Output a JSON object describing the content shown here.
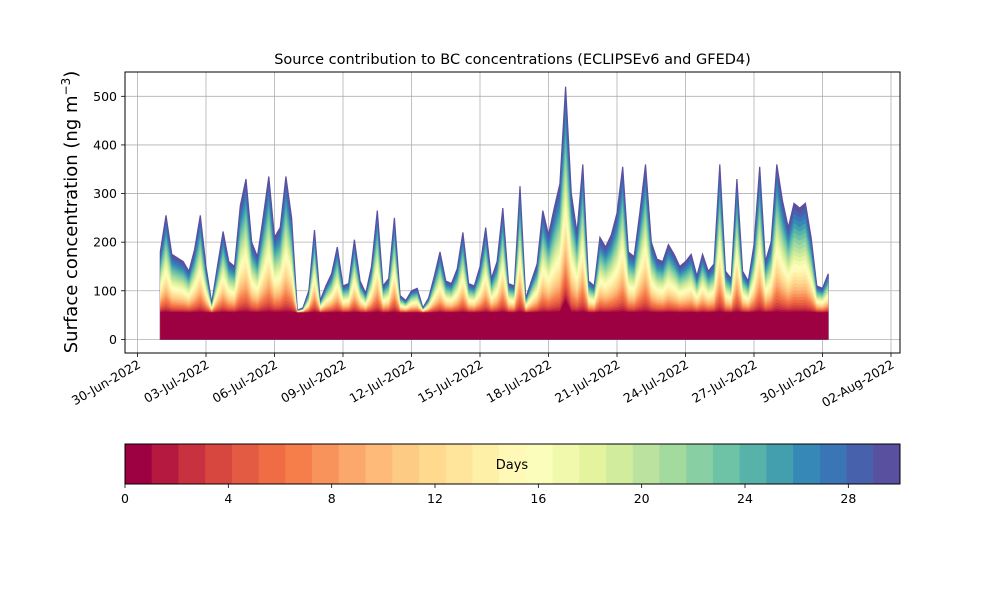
{
  "chart_data": {
    "type": "area",
    "title": "Source contribution to BC concentrations (ECLIPSEv6 and GFED4)",
    "xlabel": "",
    "ylabel": "Surface concentration (ng m",
    "ylabel_sup": "−3",
    "ylabel_close": ")",
    "ylim": [
      -28,
      550
    ],
    "yticks": [
      0,
      100,
      200,
      300,
      400,
      500
    ],
    "xticks": [
      "30-Jun-2022",
      "03-Jul-2022",
      "06-Jul-2022",
      "09-Jul-2022",
      "12-Jul-2022",
      "15-Jul-2022",
      "18-Jul-2022",
      "21-Jul-2022",
      "24-Jul-2022",
      "27-Jul-2022",
      "30-Jul-2022",
      "02-Aug-2022"
    ],
    "grid": true,
    "x_unit": "date",
    "series": [
      {
        "x": "2022-07-01",
        "y": 180
      },
      {
        "x": "2022-07-01T06",
        "y": 255
      },
      {
        "x": "2022-07-01T12",
        "y": 175
      },
      {
        "x": "2022-07-02",
        "y": 160
      },
      {
        "x": "2022-07-02T06",
        "y": 140
      },
      {
        "x": "2022-07-02T12",
        "y": 185
      },
      {
        "x": "2022-07-02T18",
        "y": 255
      },
      {
        "x": "2022-07-03",
        "y": 150
      },
      {
        "x": "2022-07-03T06",
        "y": 75
      },
      {
        "x": "2022-07-03T12",
        "y": 150
      },
      {
        "x": "2022-07-03T18",
        "y": 222
      },
      {
        "x": "2022-07-04",
        "y": 160
      },
      {
        "x": "2022-07-04T06",
        "y": 150
      },
      {
        "x": "2022-07-04T12",
        "y": 275
      },
      {
        "x": "2022-07-04T18",
        "y": 330
      },
      {
        "x": "2022-07-05",
        "y": 200
      },
      {
        "x": "2022-07-05T06",
        "y": 170
      },
      {
        "x": "2022-07-05T12",
        "y": 250
      },
      {
        "x": "2022-07-05T18",
        "y": 335
      },
      {
        "x": "2022-07-06",
        "y": 210
      },
      {
        "x": "2022-07-06T06",
        "y": 230
      },
      {
        "x": "2022-07-06T12",
        "y": 335
      },
      {
        "x": "2022-07-06T18",
        "y": 250
      },
      {
        "x": "2022-07-07",
        "y": 60
      },
      {
        "x": "2022-07-07T06",
        "y": 65
      },
      {
        "x": "2022-07-07T12",
        "y": 100
      },
      {
        "x": "2022-07-07T18",
        "y": 225
      },
      {
        "x": "2022-07-08",
        "y": 80
      },
      {
        "x": "2022-07-08T06",
        "y": 110
      },
      {
        "x": "2022-07-08T12",
        "y": 135
      },
      {
        "x": "2022-07-08T18",
        "y": 190
      },
      {
        "x": "2022-07-09",
        "y": 110
      },
      {
        "x": "2022-07-09T06",
        "y": 115
      },
      {
        "x": "2022-07-09T12",
        "y": 205
      },
      {
        "x": "2022-07-09T18",
        "y": 120
      },
      {
        "x": "2022-07-10",
        "y": 95
      },
      {
        "x": "2022-07-10T06",
        "y": 150
      },
      {
        "x": "2022-07-10T12",
        "y": 265
      },
      {
        "x": "2022-07-10T18",
        "y": 110
      },
      {
        "x": "2022-07-11",
        "y": 125
      },
      {
        "x": "2022-07-11T06",
        "y": 250
      },
      {
        "x": "2022-07-11T12",
        "y": 90
      },
      {
        "x": "2022-07-11T18",
        "y": 80
      },
      {
        "x": "2022-07-12",
        "y": 100
      },
      {
        "x": "2022-07-12T06",
        "y": 105
      },
      {
        "x": "2022-07-12T12",
        "y": 65
      },
      {
        "x": "2022-07-12T18",
        "y": 85
      },
      {
        "x": "2022-07-13",
        "y": 130
      },
      {
        "x": "2022-07-13T06",
        "y": 180
      },
      {
        "x": "2022-07-13T12",
        "y": 120
      },
      {
        "x": "2022-07-13T18",
        "y": 115
      },
      {
        "x": "2022-07-14",
        "y": 145
      },
      {
        "x": "2022-07-14T06",
        "y": 220
      },
      {
        "x": "2022-07-14T12",
        "y": 115
      },
      {
        "x": "2022-07-14T18",
        "y": 110
      },
      {
        "x": "2022-07-15",
        "y": 150
      },
      {
        "x": "2022-07-15T06",
        "y": 230
      },
      {
        "x": "2022-07-15T12",
        "y": 125
      },
      {
        "x": "2022-07-15T18",
        "y": 160
      },
      {
        "x": "2022-07-16",
        "y": 270
      },
      {
        "x": "2022-07-16T06",
        "y": 115
      },
      {
        "x": "2022-07-16T12",
        "y": 110
      },
      {
        "x": "2022-07-16T18",
        "y": 315
      },
      {
        "x": "2022-07-17",
        "y": 85
      },
      {
        "x": "2022-07-17T06",
        "y": 120
      },
      {
        "x": "2022-07-17T12",
        "y": 155
      },
      {
        "x": "2022-07-17T18",
        "y": 265
      },
      {
        "x": "2022-07-18",
        "y": 215
      },
      {
        "x": "2022-07-18T06",
        "y": 270
      },
      {
        "x": "2022-07-18T12",
        "y": 320
      },
      {
        "x": "2022-07-18T18",
        "y": 520
      },
      {
        "x": "2022-07-19",
        "y": 300
      },
      {
        "x": "2022-07-19T06",
        "y": 220
      },
      {
        "x": "2022-07-19T12",
        "y": 360
      },
      {
        "x": "2022-07-19T18",
        "y": 120
      },
      {
        "x": "2022-07-20",
        "y": 110
      },
      {
        "x": "2022-07-20T06",
        "y": 210
      },
      {
        "x": "2022-07-20T12",
        "y": 190
      },
      {
        "x": "2022-07-20T18",
        "y": 215
      },
      {
        "x": "2022-07-21",
        "y": 260
      },
      {
        "x": "2022-07-21T06",
        "y": 355
      },
      {
        "x": "2022-07-21T12",
        "y": 180
      },
      {
        "x": "2022-07-21T18",
        "y": 170
      },
      {
        "x": "2022-07-22",
        "y": 260
      },
      {
        "x": "2022-07-22T06",
        "y": 360
      },
      {
        "x": "2022-07-22T12",
        "y": 200
      },
      {
        "x": "2022-07-22T18",
        "y": 165
      },
      {
        "x": "2022-07-23",
        "y": 160
      },
      {
        "x": "2022-07-23T06",
        "y": 195
      },
      {
        "x": "2022-07-23T12",
        "y": 175
      },
      {
        "x": "2022-07-23T18",
        "y": 150
      },
      {
        "x": "2022-07-24",
        "y": 160
      },
      {
        "x": "2022-07-24T06",
        "y": 175
      },
      {
        "x": "2022-07-24T12",
        "y": 130
      },
      {
        "x": "2022-07-24T18",
        "y": 175
      },
      {
        "x": "2022-07-25",
        "y": 140
      },
      {
        "x": "2022-07-25T06",
        "y": 155
      },
      {
        "x": "2022-07-25T12",
        "y": 360
      },
      {
        "x": "2022-07-25T18",
        "y": 140
      },
      {
        "x": "2022-07-26",
        "y": 125
      },
      {
        "x": "2022-07-26T06",
        "y": 330
      },
      {
        "x": "2022-07-26T12",
        "y": 140
      },
      {
        "x": "2022-07-26T18",
        "y": 120
      },
      {
        "x": "2022-07-27",
        "y": 195
      },
      {
        "x": "2022-07-27T06",
        "y": 355
      },
      {
        "x": "2022-07-27T12",
        "y": 160
      },
      {
        "x": "2022-07-27T18",
        "y": 200
      },
      {
        "x": "2022-07-28",
        "y": 360
      },
      {
        "x": "2022-07-28T06",
        "y": 285
      },
      {
        "x": "2022-07-28T12",
        "y": 230
      },
      {
        "x": "2022-07-28T18",
        "y": 280
      },
      {
        "x": "2022-07-29",
        "y": 270
      },
      {
        "x": "2022-07-29T06",
        "y": 280
      },
      {
        "x": "2022-07-29T12",
        "y": 210
      },
      {
        "x": "2022-07-29T18",
        "y": 110
      },
      {
        "x": "2022-07-30",
        "y": 105
      },
      {
        "x": "2022-07-30T06",
        "y": 135
      }
    ],
    "baseline_fraction": [
      0.15,
      0.3
    ],
    "colorbar": {
      "label": "Days",
      "min": 0,
      "max": 30,
      "ticks": [
        0,
        4,
        8,
        12,
        16,
        20,
        24,
        28
      ],
      "colors": [
        "#9e0142",
        "#b5193f",
        "#c8313f",
        "#d8473f",
        "#e45b43",
        "#ef6c45",
        "#f57e4b",
        "#f9935c",
        "#fca76b",
        "#fdba78",
        "#fdcb84",
        "#fed98e",
        "#fee59b",
        "#fff0a8",
        "#fff8b7",
        "#fbfdbb",
        "#f1f9ad",
        "#e4f49e",
        "#d1ec9d",
        "#bbe39f",
        "#a3da9e",
        "#88cfa4",
        "#6ec3a6",
        "#57b3a9",
        "#439fad",
        "#3689b6",
        "#3a75b5",
        "#4861ad",
        "#5a50a0"
      ]
    }
  }
}
